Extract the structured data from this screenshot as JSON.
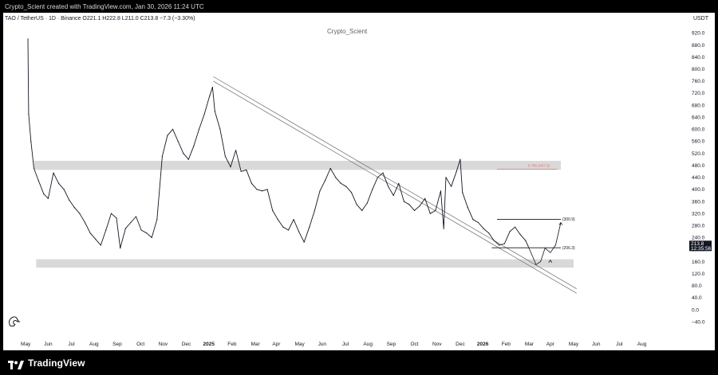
{
  "header": {
    "credit": "Crypto_Scient created with TradingView.com, Jan 30, 2026 11:24 UTC",
    "symbol_line": "TAO / TetherUS · 1D · Binance  O221.1  H222.8  L211.0  C213.8  −7.3 (−3.30%)",
    "currency": "USDT",
    "watermark": "Crypto_Scient"
  },
  "footer": {
    "brand": "TradingView"
  },
  "price_tag": {
    "price": "213.8",
    "countdown": "12:35:56"
  },
  "annotations": {
    "resistance_label": "(300.9)",
    "support_label": "(206.3)",
    "fib_label": "0.786 (467.3)"
  },
  "colors": {
    "background": "#ffffff",
    "frame": "#000000",
    "candle": "#131722",
    "zone": "#d9d9d9",
    "fib": "#e57373",
    "line": "#131722"
  },
  "chart_data": {
    "type": "line",
    "title": "",
    "y_axis": {
      "ticks": [
        "920.0",
        "880.0",
        "840.0",
        "800.0",
        "760.0",
        "720.0",
        "680.0",
        "640.0",
        "600.0",
        "560.0",
        "520.0",
        "480.0",
        "440.0",
        "400.0",
        "360.0",
        "320.0",
        "280.0",
        "240.0",
        "200.0",
        "160.0",
        "120.0",
        "80.0",
        "40.0",
        "0.0",
        "−40.0"
      ],
      "range": [
        -50,
        945
      ]
    },
    "x_axis": {
      "ticks": [
        "May",
        "Jun",
        "Jul",
        "Aug",
        "Sep",
        "Oct",
        "Nov",
        "Dec",
        "2025",
        "Feb",
        "Mar",
        "Apr",
        "May",
        "Jun",
        "Jul",
        "Aug",
        "Sep",
        "Oct",
        "Nov",
        "Dec",
        "2026",
        "Feb",
        "Mar",
        "Apr",
        "May",
        "Jun",
        "Jul",
        "Aug"
      ],
      "bold_ticks": [
        "2025",
        "2026"
      ],
      "range": [
        "2024-04-04",
        "2026-08-31"
      ]
    },
    "grid": false,
    "series": [
      {
        "points": [
          [
            "2024-04-04",
            900
          ],
          [
            "2024-04-05",
            650
          ],
          [
            "2024-04-08",
            560
          ],
          [
            "2024-04-12",
            470
          ],
          [
            "2024-04-18",
            430
          ],
          [
            "2024-04-25",
            385
          ],
          [
            "2024-05-01",
            370
          ],
          [
            "2024-05-08",
            455
          ],
          [
            "2024-05-15",
            420
          ],
          [
            "2024-05-22",
            400
          ],
          [
            "2024-05-29",
            365
          ],
          [
            "2024-06-05",
            340
          ],
          [
            "2024-06-12",
            320
          ],
          [
            "2024-06-19",
            290
          ],
          [
            "2024-06-26",
            255
          ],
          [
            "2024-07-03",
            235
          ],
          [
            "2024-07-10",
            215
          ],
          [
            "2024-07-17",
            265
          ],
          [
            "2024-07-24",
            320
          ],
          [
            "2024-07-31",
            305
          ],
          [
            "2024-08-05",
            205
          ],
          [
            "2024-08-12",
            270
          ],
          [
            "2024-08-19",
            290
          ],
          [
            "2024-08-26",
            310
          ],
          [
            "2024-09-02",
            265
          ],
          [
            "2024-09-09",
            255
          ],
          [
            "2024-09-16",
            240
          ],
          [
            "2024-09-23",
            300
          ],
          [
            "2024-09-30",
            510
          ],
          [
            "2024-10-07",
            580
          ],
          [
            "2024-10-14",
            600
          ],
          [
            "2024-10-21",
            560
          ],
          [
            "2024-10-28",
            520
          ],
          [
            "2024-11-04",
            500
          ],
          [
            "2024-11-11",
            545
          ],
          [
            "2024-11-18",
            600
          ],
          [
            "2024-11-25",
            650
          ],
          [
            "2024-12-02",
            710
          ],
          [
            "2024-12-06",
            740
          ],
          [
            "2024-12-09",
            660
          ],
          [
            "2024-12-16",
            600
          ],
          [
            "2024-12-23",
            510
          ],
          [
            "2024-12-30",
            475
          ],
          [
            "2025-01-06",
            530
          ],
          [
            "2025-01-13",
            460
          ],
          [
            "2025-01-20",
            465
          ],
          [
            "2025-01-27",
            420
          ],
          [
            "2025-02-03",
            400
          ],
          [
            "2025-02-10",
            395
          ],
          [
            "2025-02-17",
            400
          ],
          [
            "2025-02-24",
            330
          ],
          [
            "2025-03-03",
            300
          ],
          [
            "2025-03-10",
            275
          ],
          [
            "2025-03-17",
            265
          ],
          [
            "2025-03-24",
            300
          ],
          [
            "2025-03-31",
            260
          ],
          [
            "2025-04-07",
            225
          ],
          [
            "2025-04-14",
            275
          ],
          [
            "2025-04-21",
            330
          ],
          [
            "2025-04-28",
            395
          ],
          [
            "2025-05-05",
            430
          ],
          [
            "2025-05-12",
            470
          ],
          [
            "2025-05-19",
            440
          ],
          [
            "2025-05-26",
            420
          ],
          [
            "2025-06-02",
            410
          ],
          [
            "2025-06-09",
            390
          ],
          [
            "2025-06-16",
            350
          ],
          [
            "2025-06-23",
            330
          ],
          [
            "2025-06-30",
            355
          ],
          [
            "2025-07-07",
            400
          ],
          [
            "2025-07-14",
            440
          ],
          [
            "2025-07-21",
            455
          ],
          [
            "2025-07-28",
            410
          ],
          [
            "2025-08-04",
            380
          ],
          [
            "2025-08-11",
            420
          ],
          [
            "2025-08-18",
            360
          ],
          [
            "2025-08-25",
            350
          ],
          [
            "2025-09-01",
            330
          ],
          [
            "2025-09-08",
            345
          ],
          [
            "2025-09-15",
            370
          ],
          [
            "2025-09-22",
            320
          ],
          [
            "2025-09-29",
            330
          ],
          [
            "2025-10-06",
            395
          ],
          [
            "2025-10-10",
            270
          ],
          [
            "2025-10-13",
            440
          ],
          [
            "2025-10-20",
            410
          ],
          [
            "2025-10-27",
            460
          ],
          [
            "2025-11-01",
            500
          ],
          [
            "2025-11-04",
            390
          ],
          [
            "2025-11-11",
            340
          ],
          [
            "2025-11-18",
            300
          ],
          [
            "2025-11-25",
            290
          ],
          [
            "2025-12-02",
            270
          ],
          [
            "2025-12-09",
            255
          ],
          [
            "2025-12-16",
            230
          ],
          [
            "2025-12-23",
            215
          ],
          [
            "2025-12-30",
            220
          ],
          [
            "2026-01-06",
            260
          ],
          [
            "2026-01-13",
            275
          ],
          [
            "2026-01-20",
            250
          ],
          [
            "2026-01-27",
            230
          ],
          [
            "2026-01-30",
            213.8
          ]
        ]
      }
    ],
    "levels": {
      "resistance": 300.9,
      "support": 206.3,
      "fib_786": 467.3,
      "last_price": 213.8
    }
  }
}
